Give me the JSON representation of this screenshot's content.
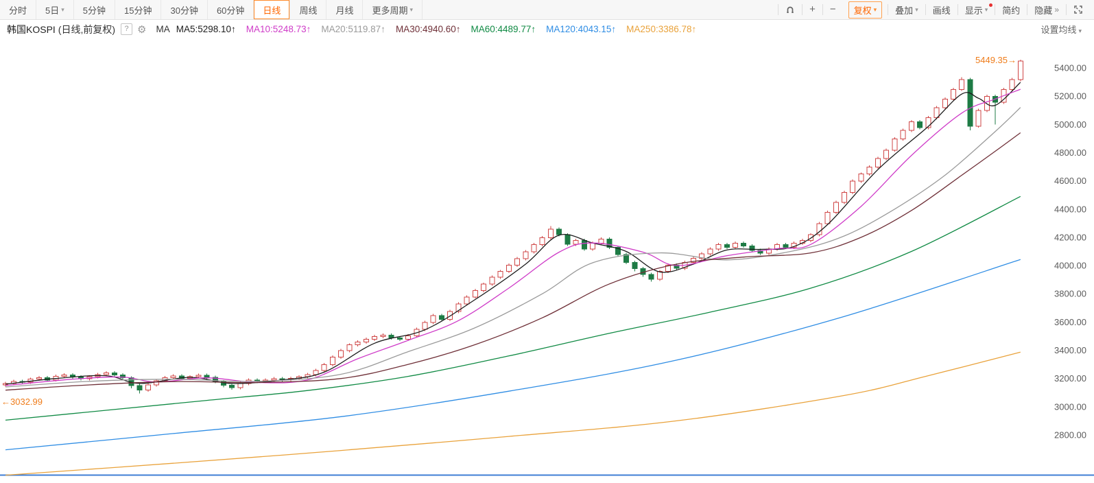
{
  "toolbar": {
    "period_tabs": [
      {
        "label": "分时"
      },
      {
        "label": "5日",
        "caret": true
      },
      {
        "label": "5分钟"
      },
      {
        "label": "15分钟"
      },
      {
        "label": "30分钟"
      },
      {
        "label": "60分钟"
      },
      {
        "label": "日线",
        "active": true
      },
      {
        "label": "周线"
      },
      {
        "label": "月线"
      },
      {
        "label": "更多周期",
        "caret": true
      }
    ],
    "tools": [
      {
        "name": "magnet-icon",
        "icon": "magnet"
      },
      {
        "name": "zoom-in-button",
        "label": "+",
        "plain": true
      },
      {
        "name": "zoom-out-button",
        "label": "−",
        "plain": true
      },
      {
        "name": "adjust-mode-button",
        "label": "复权",
        "caret": true,
        "accent": true
      },
      {
        "name": "overlay-button",
        "label": "叠加",
        "caret": true
      },
      {
        "name": "draw-line-button",
        "label": "画线"
      },
      {
        "name": "display-button",
        "label": "显示",
        "caret": true,
        "dot": true
      },
      {
        "name": "simple-mode-button",
        "label": "简约"
      },
      {
        "name": "hide-button",
        "label": "隐藏",
        "chevrons": "»"
      },
      {
        "name": "fullscreen-icon",
        "icon": "expand"
      }
    ]
  },
  "header": {
    "symbol": "韩国KOSPI",
    "note": "(日线,前复权)",
    "help_glyph": "?",
    "gear_glyph": "⚙"
  },
  "legend": {
    "ma_prefix": "MA",
    "trend_arrow": "↑",
    "settings_label": "设置均线"
  },
  "chart_data": {
    "type": "candlestick",
    "title": "韩国KOSPI 日线(前复权) K线图",
    "symbol": "韩国KOSPI",
    "period": "日线",
    "adjust": "前复权",
    "ylim": [
      2460,
      5609
    ],
    "grid": false,
    "colors": {
      "up": "#cf4444",
      "up_fill": "#ffffff",
      "down": "#1e7b45",
      "axis_text": "#5a5a5a",
      "baseline": "#3f7fd6",
      "price_label": "#ef7c1a",
      "background": "#ffffff"
    },
    "y_axis": {
      "ticks": [
        "5400.00",
        "5200.00",
        "5000.00",
        "4800.00",
        "4600.00",
        "4400.00",
        "4200.00",
        "4000.00",
        "3800.00",
        "3600.00",
        "3400.00",
        "3200.00",
        "3000.00",
        "2800.00"
      ]
    },
    "labels": {
      "latest_price": "5449.35",
      "latest_value": 5449.35,
      "latest_arrow": "→",
      "left_edge_price": "3032.99",
      "left_edge_value": 3032.99,
      "left_arrow": "←"
    },
    "candles": [
      [
        3155,
        3177,
        3143,
        3165
      ],
      [
        3165,
        3192,
        3153,
        3180
      ],
      [
        3180,
        3192,
        3163,
        3175
      ],
      [
        3175,
        3207,
        3163,
        3195
      ],
      [
        3195,
        3217,
        3183,
        3205
      ],
      [
        3205,
        3217,
        3178,
        3190
      ],
      [
        3190,
        3227,
        3178,
        3215
      ],
      [
        3215,
        3237,
        3203,
        3225
      ],
      [
        3225,
        3237,
        3198,
        3210
      ],
      [
        3210,
        3222,
        3186,
        3198
      ],
      [
        3198,
        3224,
        3186,
        3212
      ],
      [
        3212,
        3240,
        3200,
        3228
      ],
      [
        3228,
        3252,
        3216,
        3240
      ],
      [
        3240,
        3252,
        3213,
        3225
      ],
      [
        3225,
        3237,
        3193,
        3205
      ],
      [
        3205,
        3215,
        3130,
        3150
      ],
      [
        3150,
        3162,
        3095,
        3118
      ],
      [
        3118,
        3167,
        3106,
        3155
      ],
      [
        3155,
        3197,
        3143,
        3185
      ],
      [
        3185,
        3217,
        3173,
        3205
      ],
      [
        3205,
        3230,
        3193,
        3218
      ],
      [
        3218,
        3230,
        3190,
        3202
      ],
      [
        3202,
        3224,
        3190,
        3212
      ],
      [
        3212,
        3234,
        3200,
        3222
      ],
      [
        3222,
        3234,
        3196,
        3208
      ],
      [
        3208,
        3220,
        3166,
        3178
      ],
      [
        3178,
        3190,
        3138,
        3152
      ],
      [
        3152,
        3164,
        3120,
        3135
      ],
      [
        3135,
        3177,
        3123,
        3165
      ],
      [
        3165,
        3200,
        3153,
        3188
      ],
      [
        3188,
        3200,
        3166,
        3178
      ],
      [
        3178,
        3200,
        3166,
        3188
      ],
      [
        3188,
        3210,
        3176,
        3198
      ],
      [
        3198,
        3210,
        3180,
        3192
      ],
      [
        3192,
        3214,
        3180,
        3202
      ],
      [
        3202,
        3224,
        3190,
        3212
      ],
      [
        3212,
        3240,
        3200,
        3228
      ],
      [
        3228,
        3270,
        3216,
        3258
      ],
      [
        3258,
        3310,
        3246,
        3298
      ],
      [
        3298,
        3364,
        3286,
        3352
      ],
      [
        3352,
        3410,
        3340,
        3398
      ],
      [
        3398,
        3450,
        3386,
        3438
      ],
      [
        3438,
        3470,
        3426,
        3458
      ],
      [
        3458,
        3490,
        3446,
        3478
      ],
      [
        3478,
        3510,
        3466,
        3498
      ],
      [
        3498,
        3520,
        3486,
        3508
      ],
      [
        3508,
        3520,
        3476,
        3488
      ],
      [
        3488,
        3500,
        3466,
        3478
      ],
      [
        3478,
        3514,
        3466,
        3502
      ],
      [
        3502,
        3560,
        3490,
        3548
      ],
      [
        3548,
        3610,
        3536,
        3598
      ],
      [
        3598,
        3657,
        3586,
        3645
      ],
      [
        3645,
        3657,
        3606,
        3618
      ],
      [
        3618,
        3687,
        3606,
        3675
      ],
      [
        3675,
        3740,
        3663,
        3728
      ],
      [
        3728,
        3790,
        3716,
        3778
      ],
      [
        3778,
        3834,
        3766,
        3822
      ],
      [
        3822,
        3880,
        3810,
        3868
      ],
      [
        3868,
        3930,
        3856,
        3918
      ],
      [
        3918,
        3970,
        3906,
        3958
      ],
      [
        3958,
        4014,
        3946,
        4002
      ],
      [
        4002,
        4060,
        3990,
        4048
      ],
      [
        4048,
        4110,
        4036,
        4098
      ],
      [
        4098,
        4160,
        4086,
        4148
      ],
      [
        4148,
        4210,
        4136,
        4198
      ],
      [
        4198,
        4280,
        4186,
        4258
      ],
      [
        4258,
        4270,
        4206,
        4218
      ],
      [
        4218,
        4230,
        4140,
        4152
      ],
      [
        4152,
        4190,
        4140,
        4178
      ],
      [
        4178,
        4190,
        4106,
        4118
      ],
      [
        4118,
        4170,
        4106,
        4158
      ],
      [
        4158,
        4200,
        4146,
        4188
      ],
      [
        4188,
        4200,
        4116,
        4128
      ],
      [
        4128,
        4140,
        4066,
        4078
      ],
      [
        4078,
        4090,
        4010,
        4022
      ],
      [
        4022,
        4034,
        3960,
        3978
      ],
      [
        3978,
        3990,
        3920,
        3938
      ],
      [
        3938,
        3950,
        3885,
        3902
      ],
      [
        3902,
        3970,
        3890,
        3958
      ],
      [
        3958,
        4014,
        3946,
        4002
      ],
      [
        4002,
        4014,
        3970,
        3982
      ],
      [
        3982,
        4034,
        3970,
        4022
      ],
      [
        4022,
        4064,
        4010,
        4052
      ],
      [
        4052,
        4094,
        4040,
        4082
      ],
      [
        4082,
        4130,
        4070,
        4118
      ],
      [
        4118,
        4160,
        4106,
        4148
      ],
      [
        4148,
        4160,
        4116,
        4128
      ],
      [
        4128,
        4170,
        4116,
        4158
      ],
      [
        4158,
        4170,
        4126,
        4138
      ],
      [
        4138,
        4150,
        4096,
        4108
      ],
      [
        4108,
        4120,
        4076,
        4088
      ],
      [
        4088,
        4130,
        4076,
        4118
      ],
      [
        4118,
        4160,
        4106,
        4148
      ],
      [
        4148,
        4160,
        4116,
        4128
      ],
      [
        4128,
        4170,
        4116,
        4158
      ],
      [
        4158,
        4190,
        4146,
        4178
      ],
      [
        4178,
        4230,
        4166,
        4218
      ],
      [
        4218,
        4310,
        4206,
        4298
      ],
      [
        4298,
        4390,
        4286,
        4378
      ],
      [
        4378,
        4460,
        4366,
        4448
      ],
      [
        4448,
        4530,
        4436,
        4518
      ],
      [
        4518,
        4610,
        4506,
        4598
      ],
      [
        4598,
        4660,
        4586,
        4648
      ],
      [
        4648,
        4710,
        4636,
        4698
      ],
      [
        4698,
        4770,
        4686,
        4758
      ],
      [
        4758,
        4830,
        4746,
        4818
      ],
      [
        4818,
        4910,
        4806,
        4898
      ],
      [
        4898,
        4970,
        4886,
        4958
      ],
      [
        4958,
        5030,
        4946,
        5018
      ],
      [
        5018,
        5030,
        4966,
        4978
      ],
      [
        4978,
        5060,
        4966,
        5048
      ],
      [
        5048,
        5130,
        5036,
        5118
      ],
      [
        5118,
        5190,
        5106,
        5178
      ],
      [
        5178,
        5260,
        5166,
        5248
      ],
      [
        5248,
        5335,
        5236,
        5318
      ],
      [
        5318,
        5330,
        4958,
        4988
      ],
      [
        4988,
        5110,
        4976,
        5098
      ],
      [
        5098,
        5210,
        5086,
        5198
      ],
      [
        5198,
        5210,
        5000,
        5158
      ],
      [
        5158,
        5260,
        5146,
        5248
      ],
      [
        5248,
        5330,
        5236,
        5318
      ],
      [
        5318,
        5458,
        5306,
        5449.35
      ]
    ],
    "ma_lines": [
      {
        "name": "MA5",
        "value": "5298.10",
        "color": "#1c1c1c",
        "points": [
          [
            0,
            3160
          ],
          [
            6,
            3200
          ],
          [
            12,
            3220
          ],
          [
            16,
            3165
          ],
          [
            22,
            3208
          ],
          [
            27,
            3165
          ],
          [
            33,
            3190
          ],
          [
            38,
            3245
          ],
          [
            44,
            3450
          ],
          [
            50,
            3545
          ],
          [
            56,
            3760
          ],
          [
            62,
            4010
          ],
          [
            66,
            4215
          ],
          [
            70,
            4160
          ],
          [
            74,
            4100
          ],
          [
            78,
            3955
          ],
          [
            82,
            4010
          ],
          [
            86,
            4110
          ],
          [
            90,
            4115
          ],
          [
            94,
            4135
          ],
          [
            98,
            4290
          ],
          [
            104,
            4680
          ],
          [
            110,
            4985
          ],
          [
            114,
            5215
          ],
          [
            116,
            5185
          ],
          [
            118,
            5135
          ],
          [
            121,
            5298.1
          ]
        ]
      },
      {
        "name": "MA10",
        "value": "5248.73",
        "color": "#cf3cc8",
        "points": [
          [
            0,
            3150
          ],
          [
            8,
            3195
          ],
          [
            14,
            3210
          ],
          [
            18,
            3175
          ],
          [
            24,
            3205
          ],
          [
            30,
            3172
          ],
          [
            36,
            3190
          ],
          [
            42,
            3340
          ],
          [
            48,
            3470
          ],
          [
            54,
            3610
          ],
          [
            60,
            3840
          ],
          [
            66,
            4095
          ],
          [
            70,
            4160
          ],
          [
            76,
            4095
          ],
          [
            80,
            4000
          ],
          [
            86,
            4070
          ],
          [
            92,
            4120
          ],
          [
            96,
            4150
          ],
          [
            102,
            4420
          ],
          [
            108,
            4780
          ],
          [
            114,
            5080
          ],
          [
            118,
            5180
          ],
          [
            121,
            5248.73
          ]
        ]
      },
      {
        "name": "MA20",
        "value": "5119.87",
        "color": "#9a9a9a",
        "points": [
          [
            0,
            3140
          ],
          [
            10,
            3180
          ],
          [
            20,
            3195
          ],
          [
            30,
            3180
          ],
          [
            40,
            3230
          ],
          [
            48,
            3390
          ],
          [
            56,
            3560
          ],
          [
            64,
            3800
          ],
          [
            70,
            4020
          ],
          [
            78,
            4090
          ],
          [
            86,
            4040
          ],
          [
            94,
            4105
          ],
          [
            100,
            4210
          ],
          [
            106,
            4400
          ],
          [
            112,
            4640
          ],
          [
            118,
            4950
          ],
          [
            121,
            5119.87
          ]
        ]
      },
      {
        "name": "MA30",
        "value": "4940.60",
        "color": "#6f3038",
        "points": [
          [
            0,
            3118
          ],
          [
            10,
            3155
          ],
          [
            20,
            3178
          ],
          [
            30,
            3172
          ],
          [
            40,
            3200
          ],
          [
            48,
            3300
          ],
          [
            56,
            3440
          ],
          [
            64,
            3630
          ],
          [
            72,
            3870
          ],
          [
            80,
            4010
          ],
          [
            88,
            4060
          ],
          [
            96,
            4090
          ],
          [
            102,
            4200
          ],
          [
            108,
            4390
          ],
          [
            114,
            4640
          ],
          [
            118,
            4810
          ],
          [
            121,
            4940.6
          ]
        ]
      },
      {
        "name": "MA60",
        "value": "4489.77",
        "color": "#108a44",
        "points": [
          [
            0,
            2905
          ],
          [
            12,
            2975
          ],
          [
            24,
            3045
          ],
          [
            36,
            3115
          ],
          [
            48,
            3215
          ],
          [
            60,
            3360
          ],
          [
            72,
            3520
          ],
          [
            84,
            3670
          ],
          [
            96,
            3840
          ],
          [
            108,
            4100
          ],
          [
            121,
            4489.77
          ]
        ]
      },
      {
        "name": "MA120",
        "value": "4043.15",
        "color": "#2f8de4",
        "points": [
          [
            0,
            2695
          ],
          [
            20,
            2810
          ],
          [
            40,
            2930
          ],
          [
            60,
            3110
          ],
          [
            80,
            3330
          ],
          [
            100,
            3640
          ],
          [
            121,
            4043.15
          ]
        ]
      },
      {
        "name": "MA250",
        "value": "3386.78",
        "color": "#e9a23b",
        "points": [
          [
            0,
            2515
          ],
          [
            20,
            2600
          ],
          [
            40,
            2690
          ],
          [
            60,
            2790
          ],
          [
            80,
            2900
          ],
          [
            100,
            3080
          ],
          [
            110,
            3220
          ],
          [
            121,
            3386.78
          ]
        ]
      }
    ]
  }
}
